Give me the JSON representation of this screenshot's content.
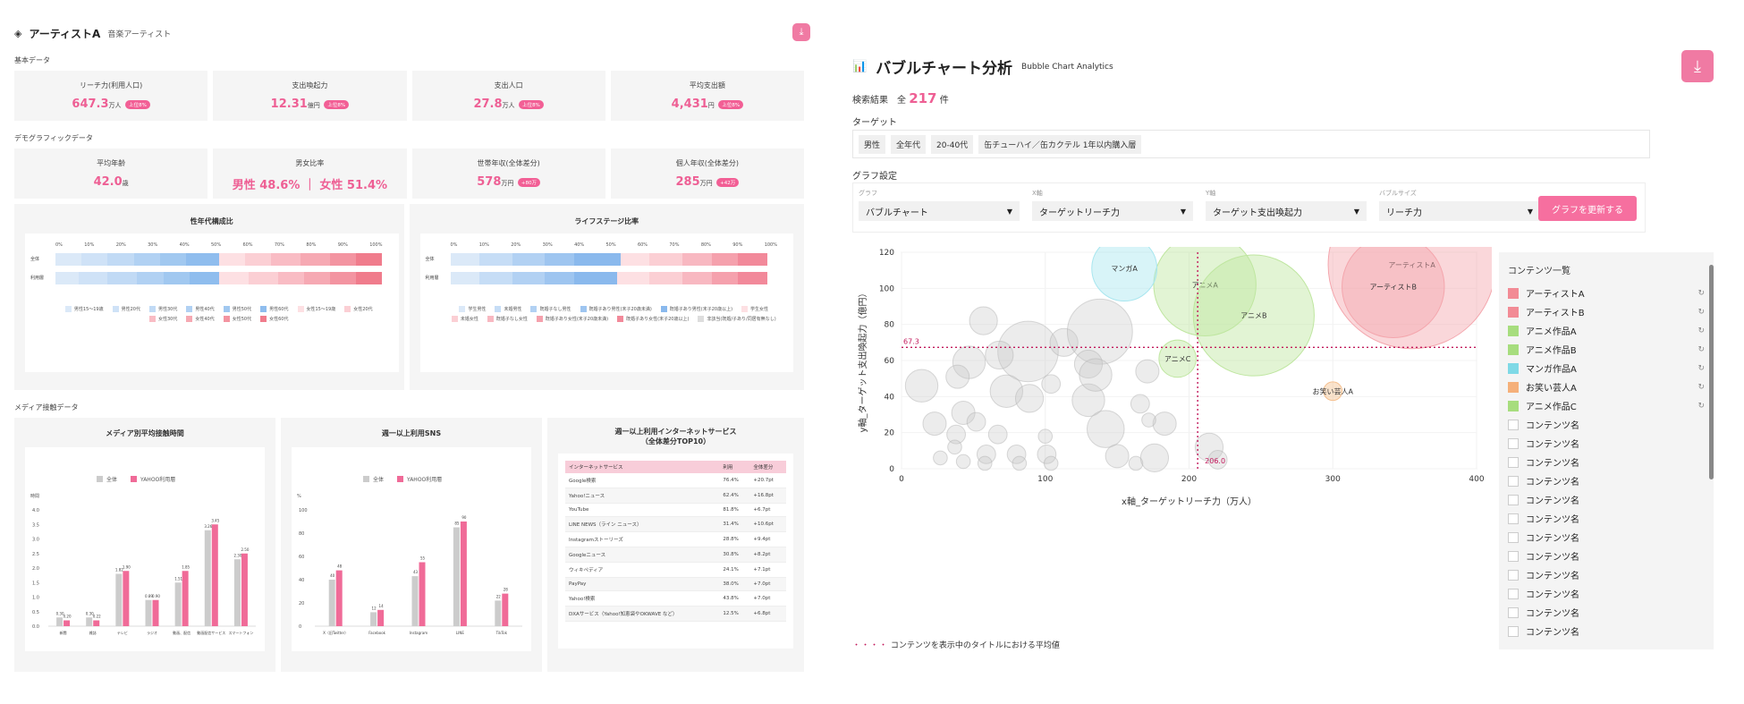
{
  "left": {
    "title": "アーティストA",
    "subtitle": "音楽アーティスト",
    "basic_label": "基本データ",
    "basic_cards": [
      {
        "label": "リーチ力(利用人口)",
        "value": "647.3",
        "unit": "万人",
        "badge": "上位8%"
      },
      {
        "label": "支出喚起力",
        "value": "12.31",
        "unit": "億円",
        "badge": "上位8%"
      },
      {
        "label": "支出人口",
        "value": "27.8",
        "unit": "万人",
        "badge": "上位8%"
      },
      {
        "label": "平均支出額",
        "value": "4,431",
        "unit": "円",
        "badge": "上位8%"
      }
    ],
    "demo_label": "デモグラフィックデータ",
    "demo_cards": [
      {
        "label": "平均年齢",
        "value": "42.0",
        "unit": "歳",
        "badge": ""
      },
      {
        "label": "男女比率",
        "value": "男性 48.6% ｜ 女性 51.4%",
        "unit": "",
        "badge": ""
      },
      {
        "label": "世帯年収(全体差分)",
        "value": "578",
        "unit": "万円",
        "badge": "+80万"
      },
      {
        "label": "個人年収(全体差分)",
        "value": "285",
        "unit": "万円",
        "badge": "+42万"
      }
    ],
    "age_chart": {
      "title": "性年代構成比",
      "ticks": [
        "0%",
        "10%",
        "20%",
        "30%",
        "40%",
        "50%",
        "60%",
        "70%",
        "80%",
        "90%",
        "100%"
      ],
      "rows": [
        "全体",
        "利用層"
      ],
      "legend": [
        "男性15〜19歳",
        "男性20代",
        "男性30代",
        "男性40代",
        "男性50代",
        "男性60代",
        "女性15〜19歳",
        "女性20代",
        "女性30代",
        "女性40代",
        "女性50代",
        "女性60代"
      ]
    },
    "life_chart": {
      "title": "ライフステージ比率",
      "ticks": [
        "0%",
        "10%",
        "20%",
        "30%",
        "40%",
        "50%",
        "60%",
        "70%",
        "80%",
        "90%",
        "100%"
      ],
      "rows": [
        "全体",
        "利用層"
      ],
      "legend": [
        "学生男性",
        "未婚男性",
        "既婚子なし男性",
        "既婚子あり男性(末子20歳未満)",
        "既婚子あり男性(末子20歳以上)",
        "学生女性",
        "未婚女性",
        "既婚子なし女性",
        "既婚子あり女性(末子20歳未満)",
        "既婚子あり女性(末子20歳以上)",
        "非該当(既婚/子あり/同居有無なし)"
      ]
    },
    "media_label": "メディア接触データ",
    "media_time": {
      "title": "メディア別平均接触時間",
      "legend": [
        "全体",
        "YAHOO利用層"
      ],
      "unit": "時間",
      "yticks": [
        "4.0",
        "3.5",
        "3.0",
        "2.5",
        "2.0",
        "1.5",
        "1.0",
        "0.5",
        "0.0"
      ],
      "categories": [
        "新聞",
        "雑誌",
        "テレビ",
        "ラジオ",
        "動画、配信",
        "動画配信サービス",
        "スマートフォン"
      ],
      "all": [
        0.3,
        0.3,
        1.8,
        0.9,
        1.5,
        3.3,
        2.3
      ],
      "users": [
        0.2,
        0.2,
        1.9,
        0.9,
        1.9,
        3.5,
        2.5
      ],
      "all_labels": [
        "0.30",
        "0.30",
        "1.82",
        "0.89",
        "1.51",
        "3.26",
        "2.30"
      ],
      "user_labels": [
        "0.20",
        "0.22",
        "1.90",
        "0.90",
        "1.85",
        "3.45",
        "2.50"
      ]
    },
    "sns": {
      "title": "週一以上利用SNS",
      "legend": [
        "全体",
        "YAHOO利用層"
      ],
      "unit": "%",
      "yticks": [
        "100",
        "80",
        "60",
        "40",
        "20",
        "0"
      ],
      "categories": [
        "X（旧Twitter）",
        "Facebook",
        "Instagram",
        "LINE",
        "TikTok"
      ],
      "all": [
        40,
        12,
        43,
        85,
        22
      ],
      "users": [
        48,
        14,
        55,
        90,
        28
      ]
    },
    "internet": {
      "title": "週一以上利用インターネットサービス",
      "subtitle": "（全体差分TOP10）",
      "headers": [
        "インターネットサービス",
        "利用",
        "全体差分"
      ],
      "rows": [
        [
          "Google検索",
          "76.4%",
          "+20.7pt"
        ],
        [
          "Yahoo!ニュース",
          "62.4%",
          "+16.8pt"
        ],
        [
          "YouTube",
          "81.8%",
          "+6.7pt"
        ],
        [
          "LINE NEWS（ライン ニュース）",
          "31.4%",
          "+10.6pt"
        ],
        [
          "Instagramストーリーズ",
          "28.8%",
          "+9.4pt"
        ],
        [
          "Googleニュース",
          "30.8%",
          "+8.2pt"
        ],
        [
          "ウィキペディア",
          "24.1%",
          "+7.1pt"
        ],
        [
          "PayPay",
          "38.0%",
          "+7.0pt"
        ],
        [
          "Yahoo!検索",
          "43.8%",
          "+7.0pt"
        ],
        [
          "DXAサービス（Yahoo!知恵袋やOKWAVE など）",
          "12.5%",
          "+6.8pt"
        ]
      ]
    }
  },
  "right": {
    "title": "バブルチャート分析",
    "subtitle": "Bubble Chart Analytics",
    "count_prefix": "検索結果　全",
    "count": "217",
    "count_suffix": "件",
    "target_label": "ターゲット",
    "target_chips": [
      "男性",
      "全年代",
      "20-40代",
      "缶チューハイ／缶カクテル 1年以内購入層"
    ],
    "settings_label": "グラフ設定",
    "settings": [
      {
        "label": "グラフ",
        "value": "バブルチャート"
      },
      {
        "label": "X軸",
        "value": "ターゲットリーチ力"
      },
      {
        "label": "Y軸",
        "value": "ターゲット支出喚起力"
      },
      {
        "label": "バブルサイズ",
        "value": "リーチ力"
      }
    ],
    "update_button": "グラフを更新する",
    "legend_title": "コンテンツ一覧",
    "legend_items": [
      {
        "name": "アーティストA",
        "color": "#f28b95"
      },
      {
        "name": "アーティストB",
        "color": "#f28b95"
      },
      {
        "name": "アニメ作品A",
        "color": "#a7dd7e"
      },
      {
        "name": "アニメ作品B",
        "color": "#a7dd7e"
      },
      {
        "name": "マンガ作品A",
        "color": "#7fd9e6"
      },
      {
        "name": "お笑い芸人A",
        "color": "#f5b07a"
      },
      {
        "name": "アニメ作品C",
        "color": "#a7dd7e"
      },
      {
        "name": "コンテンツ名",
        "color": ""
      },
      {
        "name": "コンテンツ名",
        "color": ""
      },
      {
        "name": "コンテンツ名",
        "color": ""
      },
      {
        "name": "コンテンツ名",
        "color": ""
      },
      {
        "name": "コンテンツ名",
        "color": ""
      },
      {
        "name": "コンテンツ名",
        "color": ""
      },
      {
        "name": "コンテンツ名",
        "color": ""
      },
      {
        "name": "コンテンツ名",
        "color": ""
      },
      {
        "name": "コンテンツ名",
        "color": ""
      },
      {
        "name": "コンテンツ名",
        "color": ""
      },
      {
        "name": "コンテンツ名",
        "color": ""
      },
      {
        "name": "コンテンツ名",
        "color": ""
      }
    ],
    "footnote": "コンテンツを表示中のタイトルにおける平均値"
  },
  "chart_data": {
    "type": "scatter",
    "xlabel": "x軸_ターゲットリーチ力（万人）",
    "ylabel": "y軸_ターゲット支出喚起力（億円）",
    "xlim": [
      0,
      400
    ],
    "ylim": [
      0,
      120
    ],
    "xticks": [
      0,
      100,
      200,
      300,
      400
    ],
    "yticks": [
      0,
      20,
      40,
      60,
      80,
      100,
      120
    ],
    "avg_x": 206.0,
    "avg_y": 67.3,
    "avg_x_label": "206.0",
    "avg_y_label": "67.3",
    "named": [
      {
        "name": "アーティストA",
        "x": 355,
        "y": 113,
        "size": 36,
        "color": "#f4a6ad"
      },
      {
        "name": "アーティストB",
        "x": 342,
        "y": 101,
        "size": 22,
        "color": "#f4a6ad"
      },
      {
        "name": "アニメA",
        "x": 211,
        "y": 102,
        "size": 22,
        "color": "#bfe6a0"
      },
      {
        "name": "アニメB",
        "x": 245,
        "y": 85,
        "size": 26,
        "color": "#bfe6a0"
      },
      {
        "name": "マンガA",
        "x": 155,
        "y": 111,
        "size": 14,
        "color": "#a8e6ef"
      },
      {
        "name": "アニメC",
        "x": 192,
        "y": 61,
        "size": 8,
        "color": "#bfe6a0"
      },
      {
        "name": "お笑い芸人A",
        "x": 300,
        "y": 43,
        "size": 4,
        "color": "#f5c08f"
      }
    ],
    "others": [
      {
        "x": 57,
        "y": 82,
        "size": 6
      },
      {
        "x": 88,
        "y": 65,
        "size": 13
      },
      {
        "x": 113,
        "y": 70,
        "size": 6
      },
      {
        "x": 138,
        "y": 76,
        "size": 14
      },
      {
        "x": 130,
        "y": 58,
        "size": 6
      },
      {
        "x": 130,
        "y": 38,
        "size": 7
      },
      {
        "x": 47,
        "y": 59,
        "size": 7
      },
      {
        "x": 68,
        "y": 63,
        "size": 6
      },
      {
        "x": 39,
        "y": 51,
        "size": 5
      },
      {
        "x": 14,
        "y": 46,
        "size": 7
      },
      {
        "x": 23,
        "y": 25,
        "size": 5
      },
      {
        "x": 73,
        "y": 43,
        "size": 7
      },
      {
        "x": 89,
        "y": 39,
        "size": 6
      },
      {
        "x": 135,
        "y": 52,
        "size": 7
      },
      {
        "x": 142,
        "y": 22,
        "size": 8
      },
      {
        "x": 183,
        "y": 25,
        "size": 5
      },
      {
        "x": 166,
        "y": 36,
        "size": 4
      },
      {
        "x": 171,
        "y": 54,
        "size": 5
      },
      {
        "x": 104,
        "y": 47,
        "size": 4
      },
      {
        "x": 43,
        "y": 31,
        "size": 5
      },
      {
        "x": 52,
        "y": 26,
        "size": 4
      },
      {
        "x": 67,
        "y": 19,
        "size": 4
      },
      {
        "x": 38,
        "y": 19,
        "size": 4
      },
      {
        "x": 37,
        "y": 12,
        "size": 3
      },
      {
        "x": 59,
        "y": 8,
        "size": 4
      },
      {
        "x": 80,
        "y": 8,
        "size": 4
      },
      {
        "x": 101,
        "y": 8,
        "size": 4
      },
      {
        "x": 150,
        "y": 7,
        "size": 5
      },
      {
        "x": 100,
        "y": 18,
        "size": 3
      },
      {
        "x": 27,
        "y": 6,
        "size": 3
      },
      {
        "x": 43,
        "y": 4,
        "size": 3
      },
      {
        "x": 58,
        "y": 3,
        "size": 3
      },
      {
        "x": 82,
        "y": 3,
        "size": 3
      },
      {
        "x": 104,
        "y": 3,
        "size": 3
      },
      {
        "x": 163,
        "y": 3,
        "size": 3
      },
      {
        "x": 176,
        "y": 6,
        "size": 6
      },
      {
        "x": 214,
        "y": 12,
        "size": 6
      },
      {
        "x": 220,
        "y": 5,
        "size": 4
      },
      {
        "x": 172,
        "y": 27,
        "size": 3
      }
    ]
  }
}
